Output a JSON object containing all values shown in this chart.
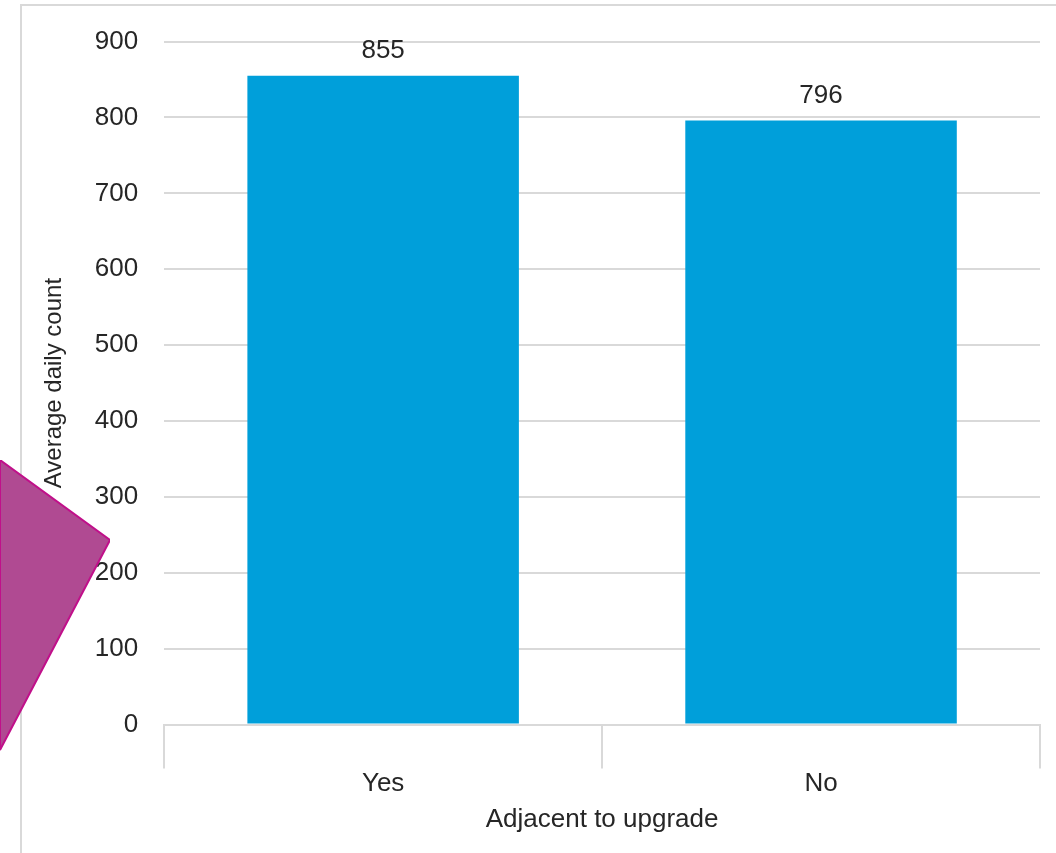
{
  "chart_data": {
    "type": "bar",
    "xlabel": "Adjacent to upgrade",
    "ylabel": "Average daily count",
    "categories": [
      "Yes",
      "No"
    ],
    "values": [
      855,
      796
    ],
    "color": "#009fda",
    "ylim": [
      0,
      900
    ],
    "yticks": [
      0,
      100,
      200,
      300,
      400,
      500,
      600,
      700,
      800,
      900
    ],
    "grid": "y",
    "data_labels": true
  }
}
